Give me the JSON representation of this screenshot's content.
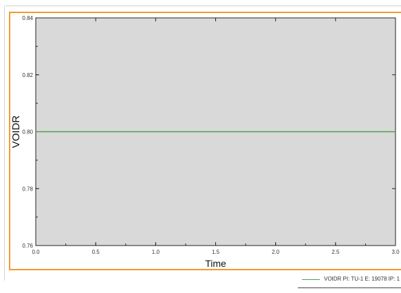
{
  "chart_data": {
    "type": "line",
    "xlabel": "Time",
    "ylabel": "VOIDR",
    "xlim": [
      0.0,
      3.0
    ],
    "ylim": [
      0.76,
      0.84
    ],
    "x_ticks": [
      0.0,
      0.5,
      1.0,
      1.5,
      2.0,
      2.5,
      3.0
    ],
    "x_tick_labels": [
      "0.0",
      "0.5",
      "1.0",
      "1.5",
      "2.0",
      "2.5",
      "3.0"
    ],
    "y_ticks": [
      0.76,
      0.78,
      0.8,
      0.82,
      0.84
    ],
    "y_tick_labels": [
      "0.76",
      "0.78",
      "0.80",
      "0.82",
      "0.84"
    ],
    "series": [
      {
        "name": "VOIDR PI: TU-1 E: 19078 IP: 1",
        "color": "#4aa24a",
        "x": [
          0.0,
          3.0
        ],
        "y": [
          0.8,
          0.8
        ]
      }
    ],
    "background": "#d9d9d9",
    "legend_position": "bottom-right",
    "grid": false
  },
  "colors": {
    "frame": "#f29a2e",
    "series": "#4aa24a"
  }
}
